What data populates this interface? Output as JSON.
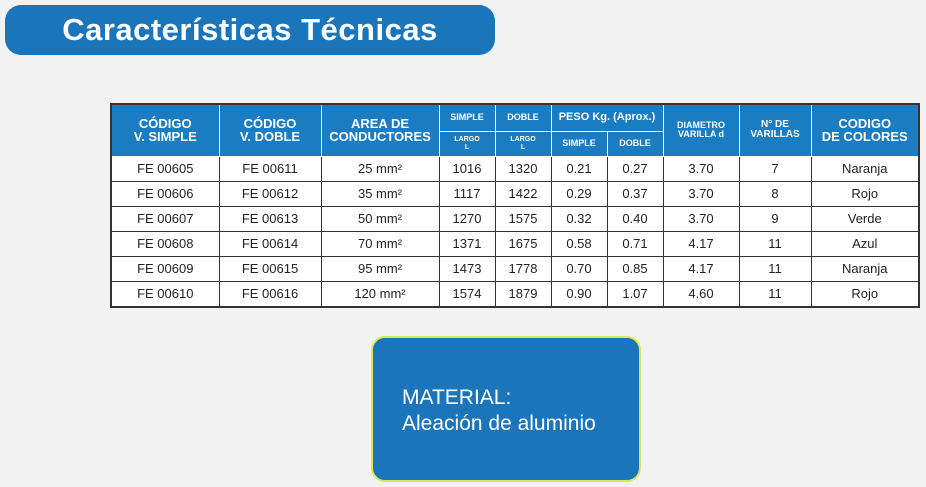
{
  "title": "Características Técnicas",
  "table": {
    "header_top": [
      "CÓDIGO\nV. SIMPLE",
      "CÓDIGO\nV. DOBLE",
      "AREA DE\nCONDUCTORES",
      "SIMPLE",
      "DOBLE",
      "PESO Kg. (Aprox.)",
      "DIAMETRO\nVARILLA d",
      "N° DE\nVARILLAS",
      "CODIGO\nDE COLORES"
    ],
    "header_bottom": [
      "LARGO\nL",
      "LARGO\nL",
      "SIMPLE",
      "DOBLE"
    ],
    "rows": [
      [
        "FE 00605",
        "FE 00611",
        "25 mm²",
        "1016",
        "1320",
        "0.21",
        "0.27",
        "3.70",
        "7",
        "Naranja"
      ],
      [
        "FE 00606",
        "FE 00612",
        "35 mm²",
        "1117",
        "1422",
        "0.29",
        "0.37",
        "3.70",
        "8",
        "Rojo"
      ],
      [
        "FE 00607",
        "FE 00613",
        "50 mm²",
        "1270",
        "1575",
        "0.32",
        "0.40",
        "3.70",
        "9",
        "Verde"
      ],
      [
        "FE 00608",
        "FE 00614",
        "70 mm²",
        "1371",
        "1675",
        "0.58",
        "0.71",
        "4.17",
        "11",
        "Azul"
      ],
      [
        "FE 00609",
        "FE 00615",
        "95 mm²",
        "1473",
        "1778",
        "0.70",
        "0.85",
        "4.17",
        "11",
        "Naranja"
      ],
      [
        "FE 00610",
        "FE 00616",
        "120 mm²",
        "1574",
        "1879",
        "0.90",
        "1.07",
        "4.60",
        "11",
        "Rojo"
      ]
    ]
  },
  "material": {
    "label": "MATERIAL:",
    "value": "Aleación de aluminio"
  }
}
